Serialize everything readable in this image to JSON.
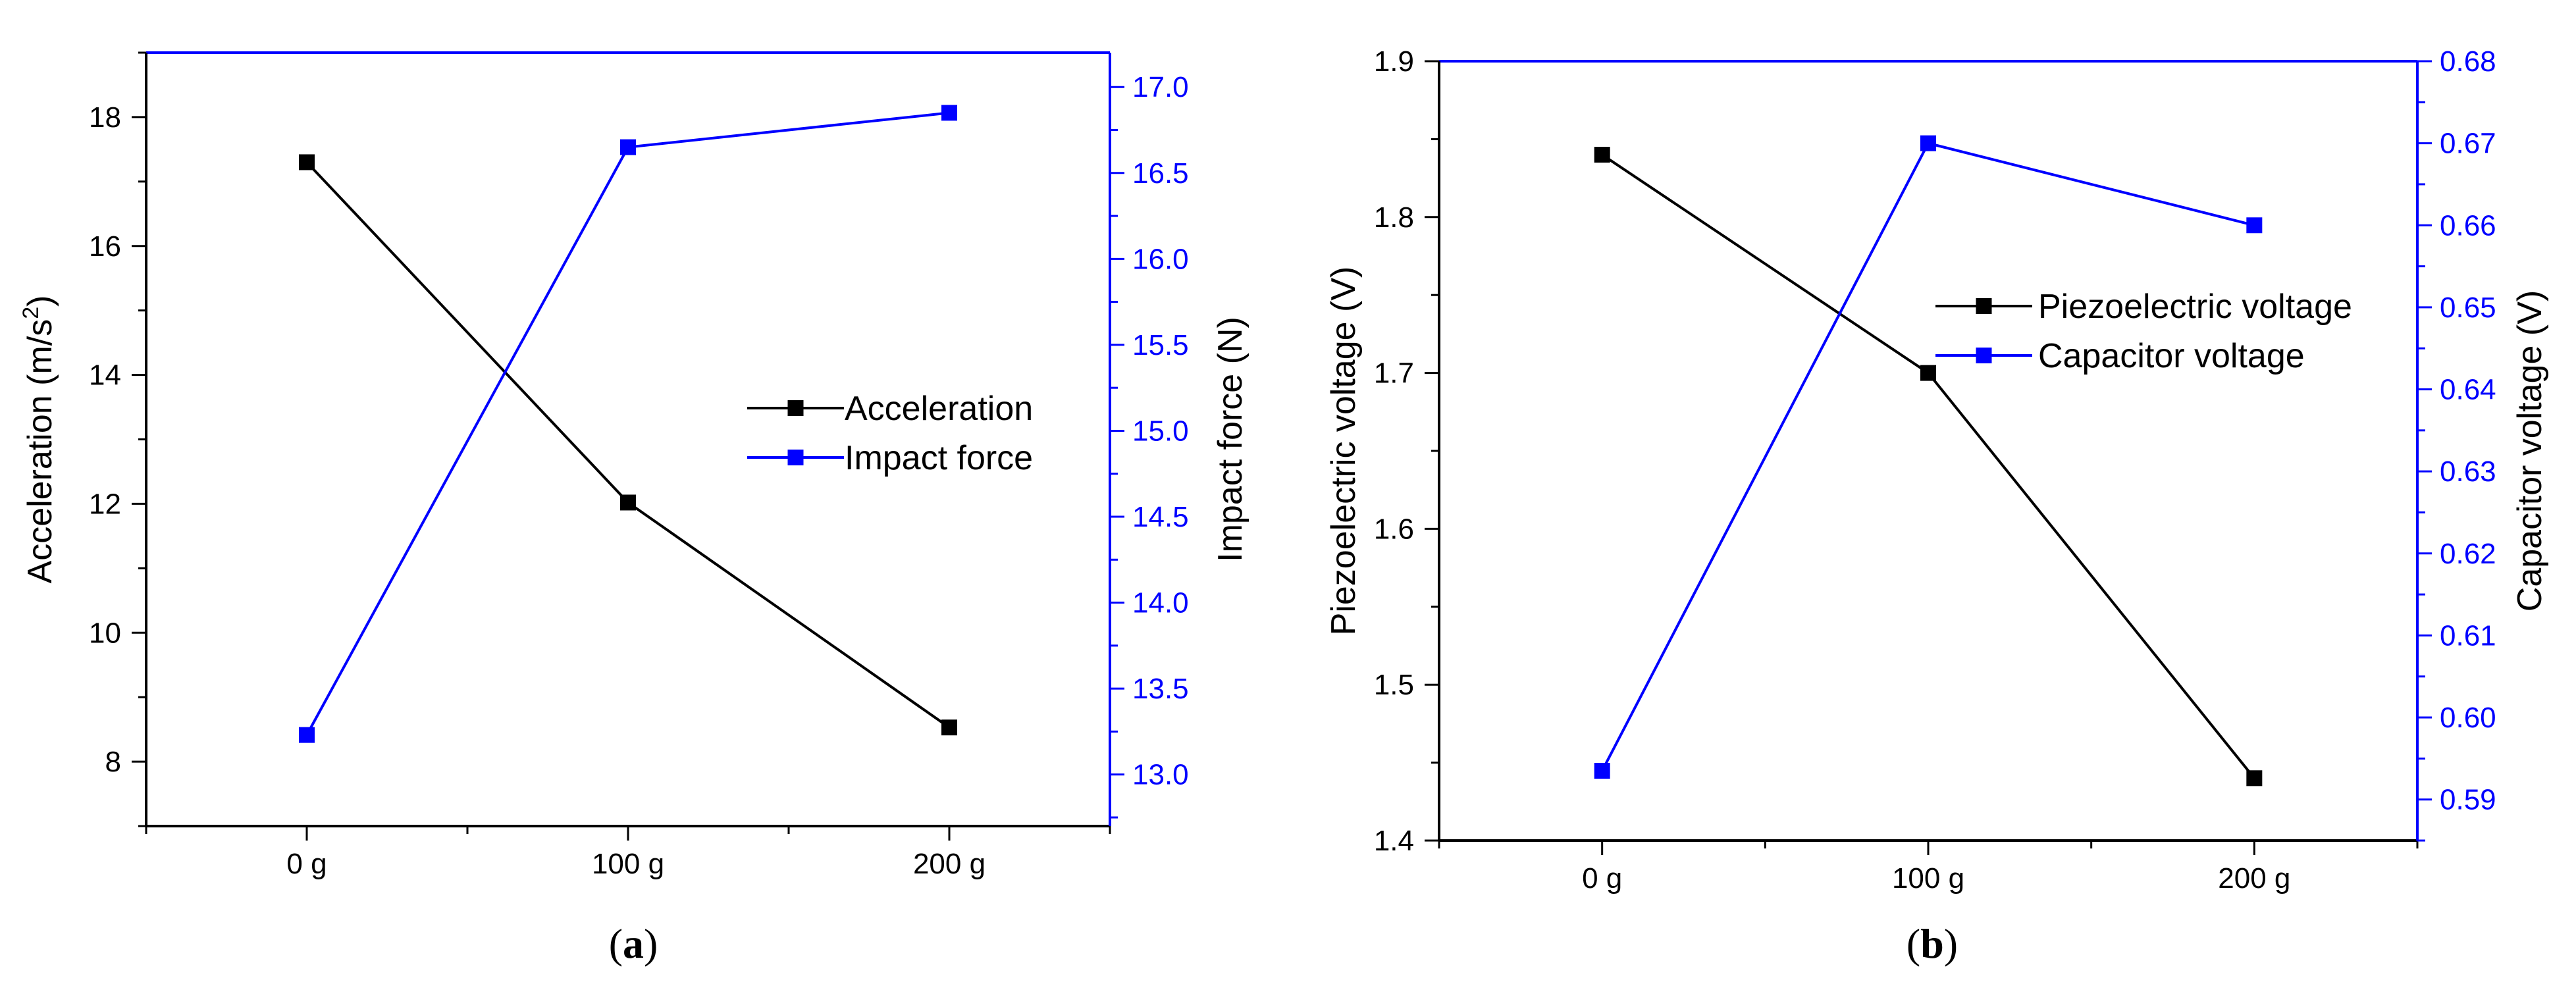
{
  "colors": {
    "black": "#000000",
    "blue": "#0000ff"
  },
  "chart_data": [
    {
      "type": "line",
      "panel": "a",
      "caption": {
        "open": "(",
        "letter": "a",
        "close": ")"
      },
      "categories": [
        "0 g",
        "100 g",
        "200 g"
      ],
      "x_ticks": [
        "0 g",
        "100 g",
        "200 g"
      ],
      "x_range": [
        -0.5,
        2.5
      ],
      "xlabel": "",
      "y_left": {
        "label_main": "Acceleration (m/s",
        "label_sup": "2",
        "label_end": ")",
        "range": [
          7,
          19
        ],
        "ticks": [
          8,
          10,
          12,
          14,
          16,
          18
        ],
        "tick_labels": [
          "8",
          "10",
          "12",
          "14",
          "16",
          "18"
        ]
      },
      "y_right": {
        "label": "Impact force (N)",
        "range": [
          12.7,
          17.2
        ],
        "ticks": [
          13.0,
          13.5,
          14.0,
          14.5,
          15.0,
          15.5,
          16.0,
          16.5,
          17.0
        ],
        "tick_labels": [
          "13.0",
          "13.5",
          "14.0",
          "14.5",
          "15.0",
          "15.5",
          "16.0",
          "16.5",
          "17.0"
        ]
      },
      "series": [
        {
          "name": "Acceleration",
          "axis": "left",
          "color": "#000000",
          "values": [
            17.3,
            12.02,
            8.53
          ]
        },
        {
          "name": "Impact force",
          "axis": "right",
          "color": "#0000ff",
          "values": [
            13.23,
            16.65,
            16.85
          ]
        }
      ],
      "legend_position": "center-right",
      "grid": false
    },
    {
      "type": "line",
      "panel": "b",
      "caption": {
        "open": "(",
        "letter": "b",
        "close": ")"
      },
      "categories": [
        "0 g",
        "100 g",
        "200 g"
      ],
      "x_ticks": [
        "0 g",
        "100 g",
        "200 g"
      ],
      "x_range": [
        -0.5,
        2.5
      ],
      "xlabel": "",
      "y_left": {
        "label": "Piezoelectric voltage (V)",
        "range": [
          1.4,
          1.9
        ],
        "ticks": [
          1.4,
          1.5,
          1.6,
          1.7,
          1.8,
          1.9
        ],
        "tick_labels": [
          "1.4",
          "1.5",
          "1.6",
          "1.7",
          "1.8",
          "1.9"
        ]
      },
      "y_right": {
        "label": "Capacitor voltage (V)",
        "range": [
          0.585,
          0.68
        ],
        "ticks": [
          0.59,
          0.6,
          0.61,
          0.62,
          0.63,
          0.64,
          0.65,
          0.66,
          0.67,
          0.68
        ],
        "tick_labels": [
          "0.59",
          "0.60",
          "0.61",
          "0.62",
          "0.63",
          "0.64",
          "0.65",
          "0.66",
          "0.67",
          "0.68"
        ]
      },
      "series": [
        {
          "name": "Piezoelectric voltage",
          "axis": "left",
          "color": "#000000",
          "values": [
            1.84,
            1.7,
            1.44
          ]
        },
        {
          "name": "Capacitor voltage",
          "axis": "right",
          "color": "#0000ff",
          "values": [
            0.5935,
            0.67,
            0.66
          ]
        }
      ],
      "legend_position": "top-right",
      "grid": false
    }
  ]
}
